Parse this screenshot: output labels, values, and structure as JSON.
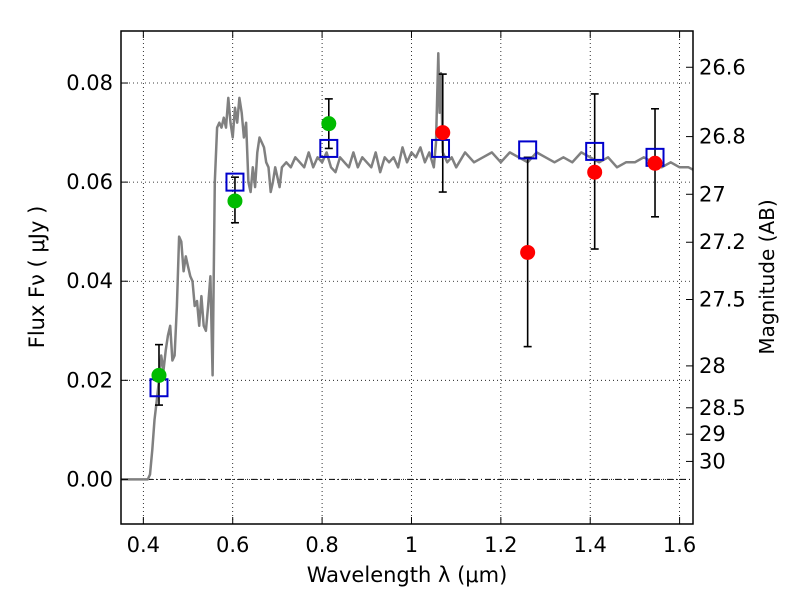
{
  "chart_data": {
    "type": "scatter",
    "xlabel": "Wavelength  λ (μm)",
    "ylabel": "Flux  Fν  ( μJy )",
    "y2label": "Magnitude (AB)",
    "xlim": [
      0.35,
      1.63
    ],
    "ylim": [
      -0.009,
      0.0905
    ],
    "grid": true,
    "x_ticks": [
      {
        "value": 0.4,
        "label": "0.4"
      },
      {
        "value": 0.6,
        "label": "0.6"
      },
      {
        "value": 0.8,
        "label": "0.8"
      },
      {
        "value": 1.0,
        "label": "1"
      },
      {
        "value": 1.2,
        "label": "1.2"
      },
      {
        "value": 1.4,
        "label": "1.4"
      },
      {
        "value": 1.6,
        "label": "1.6"
      }
    ],
    "y_ticks": [
      {
        "value": 0.0,
        "label": "0.00"
      },
      {
        "value": 0.02,
        "label": "0.02"
      },
      {
        "value": 0.04,
        "label": "0.04"
      },
      {
        "value": 0.06,
        "label": "0.06"
      },
      {
        "value": 0.08,
        "label": "0.08"
      }
    ],
    "y2_ticks": [
      {
        "value": 26.6,
        "label": "26.6"
      },
      {
        "value": 26.8,
        "label": "26.8"
      },
      {
        "value": 27.0,
        "label": "27"
      },
      {
        "value": 27.2,
        "label": "27.2"
      },
      {
        "value": 27.5,
        "label": "27.5"
      },
      {
        "value": 28.0,
        "label": "28"
      },
      {
        "value": 28.5,
        "label": "28.5"
      },
      {
        "value": 29.0,
        "label": "29"
      },
      {
        "value": 30.0,
        "label": "30"
      }
    ],
    "model_spectrum": {
      "color": "#808080",
      "x": [
        0.35,
        0.41,
        0.415,
        0.42,
        0.425,
        0.43,
        0.435,
        0.44,
        0.445,
        0.45,
        0.455,
        0.46,
        0.465,
        0.47,
        0.475,
        0.48,
        0.485,
        0.49,
        0.495,
        0.5,
        0.505,
        0.51,
        0.515,
        0.52,
        0.525,
        0.53,
        0.535,
        0.54,
        0.545,
        0.55,
        0.555,
        0.56,
        0.565,
        0.57,
        0.575,
        0.58,
        0.585,
        0.59,
        0.595,
        0.6,
        0.605,
        0.61,
        0.615,
        0.62,
        0.625,
        0.63,
        0.635,
        0.64,
        0.645,
        0.65,
        0.655,
        0.66,
        0.665,
        0.67,
        0.675,
        0.68,
        0.685,
        0.69,
        0.695,
        0.7,
        0.705,
        0.71,
        0.72,
        0.73,
        0.74,
        0.75,
        0.76,
        0.77,
        0.78,
        0.79,
        0.8,
        0.81,
        0.82,
        0.83,
        0.84,
        0.85,
        0.86,
        0.87,
        0.88,
        0.89,
        0.9,
        0.91,
        0.92,
        0.93,
        0.94,
        0.95,
        0.96,
        0.97,
        0.98,
        0.99,
        1.0,
        1.01,
        1.02,
        1.03,
        1.04,
        1.05,
        1.055,
        1.06,
        1.063,
        1.066,
        1.07,
        1.08,
        1.09,
        1.1,
        1.12,
        1.14,
        1.16,
        1.18,
        1.2,
        1.22,
        1.24,
        1.26,
        1.28,
        1.3,
        1.32,
        1.34,
        1.36,
        1.38,
        1.4,
        1.42,
        1.44,
        1.46,
        1.48,
        1.5,
        1.52,
        1.54,
        1.56,
        1.58,
        1.6,
        1.62,
        1.63
      ],
      "y": [
        0.0,
        0.0,
        0.001,
        0.006,
        0.012,
        0.016,
        0.02,
        0.025,
        0.022,
        0.026,
        0.029,
        0.031,
        0.024,
        0.025,
        0.035,
        0.049,
        0.048,
        0.042,
        0.045,
        0.043,
        0.041,
        0.04,
        0.035,
        0.036,
        0.031,
        0.037,
        0.031,
        0.03,
        0.035,
        0.041,
        0.021,
        0.06,
        0.071,
        0.072,
        0.071,
        0.073,
        0.071,
        0.077,
        0.072,
        0.069,
        0.075,
        0.072,
        0.077,
        0.074,
        0.069,
        0.072,
        0.06,
        0.058,
        0.063,
        0.059,
        0.066,
        0.069,
        0.068,
        0.067,
        0.064,
        0.063,
        0.058,
        0.06,
        0.063,
        0.061,
        0.059,
        0.063,
        0.064,
        0.063,
        0.065,
        0.064,
        0.063,
        0.066,
        0.063,
        0.065,
        0.064,
        0.066,
        0.063,
        0.062,
        0.065,
        0.064,
        0.063,
        0.066,
        0.063,
        0.065,
        0.064,
        0.063,
        0.066,
        0.062,
        0.065,
        0.064,
        0.065,
        0.063,
        0.067,
        0.064,
        0.066,
        0.065,
        0.067,
        0.064,
        0.066,
        0.063,
        0.068,
        0.086,
        0.074,
        0.082,
        0.066,
        0.064,
        0.065,
        0.063,
        0.066,
        0.064,
        0.065,
        0.066,
        0.064,
        0.066,
        0.065,
        0.064,
        0.066,
        0.065,
        0.064,
        0.065,
        0.064,
        0.066,
        0.065,
        0.064,
        0.065,
        0.063,
        0.064,
        0.064,
        0.065,
        0.064,
        0.063,
        0.064,
        0.063,
        0.063,
        0.0625
      ]
    },
    "model_magnitudes": {
      "color": "#0000cc",
      "x": [
        0.435,
        0.605,
        0.815,
        1.065,
        1.26,
        1.41,
        1.545
      ],
      "y": [
        0.0185,
        0.06,
        0.0668,
        0.0668,
        0.0665,
        0.0662,
        0.065
      ]
    },
    "green_observations": {
      "color": "#00bb00",
      "x": [
        0.435,
        0.605,
        0.815
      ],
      "y": [
        0.021,
        0.0562,
        0.0718
      ],
      "err_low": [
        0.015,
        0.0518,
        0.0668
      ],
      "err_high": [
        0.0272,
        0.061,
        0.0768
      ]
    },
    "red_observations": {
      "color": "#ff0000",
      "x": [
        1.07,
        1.26,
        1.41,
        1.545
      ],
      "y": [
        0.07,
        0.0458,
        0.062,
        0.0638
      ],
      "err_low": [
        0.058,
        0.0268,
        0.0465,
        0.053
      ],
      "err_high": [
        0.0818,
        0.065,
        0.0778,
        0.0748
      ]
    }
  }
}
